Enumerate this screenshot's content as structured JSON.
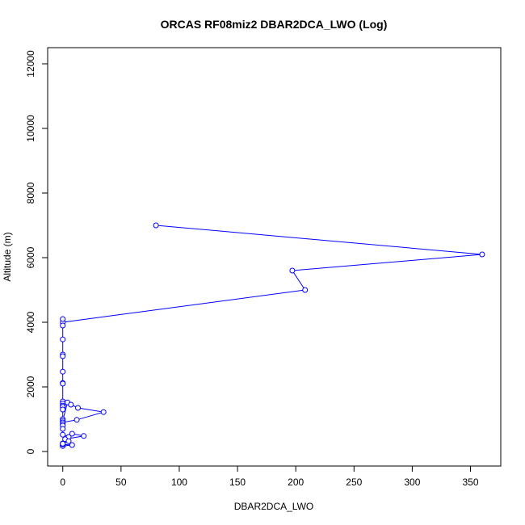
{
  "chart_data": {
    "type": "line",
    "title": "ORCAS RF08miz2 DBAR2DCA_LWO (Log)",
    "xlabel": "DBAR2DCA_LWO",
    "ylabel": "Altitude (m)",
    "xlim": [
      -13,
      376
    ],
    "ylim": [
      -450,
      12500
    ],
    "xticks": [
      0,
      50,
      100,
      150,
      200,
      250,
      300,
      350
    ],
    "yticks": [
      0,
      2000,
      4000,
      6000,
      8000,
      10000,
      12000
    ],
    "grid": false,
    "marker": "open-circle",
    "color": "#0000ff",
    "series": [
      {
        "x": [
          80,
          360,
          197,
          208,
          0,
          0,
          0,
          0,
          0,
          0,
          0,
          0,
          0,
          0,
          0,
          0,
          0,
          0,
          0,
          0,
          4,
          7,
          13,
          35,
          12,
          0,
          0,
          0,
          0,
          0,
          5,
          8,
          18,
          2,
          5,
          0,
          0,
          0,
          8,
          0,
          0
        ],
        "y": [
          7000,
          6100,
          5600,
          5000,
          4000,
          4100,
          3900,
          3470,
          3000,
          2950,
          2470,
          2120,
          2100,
          1550,
          1480,
          1420,
          1380,
          1300,
          1000,
          950,
          1520,
          1450,
          1350,
          1220,
          980,
          900,
          850,
          800,
          700,
          520,
          450,
          550,
          480,
          380,
          320,
          250,
          200,
          170,
          200,
          220,
          240
        ]
      }
    ]
  }
}
